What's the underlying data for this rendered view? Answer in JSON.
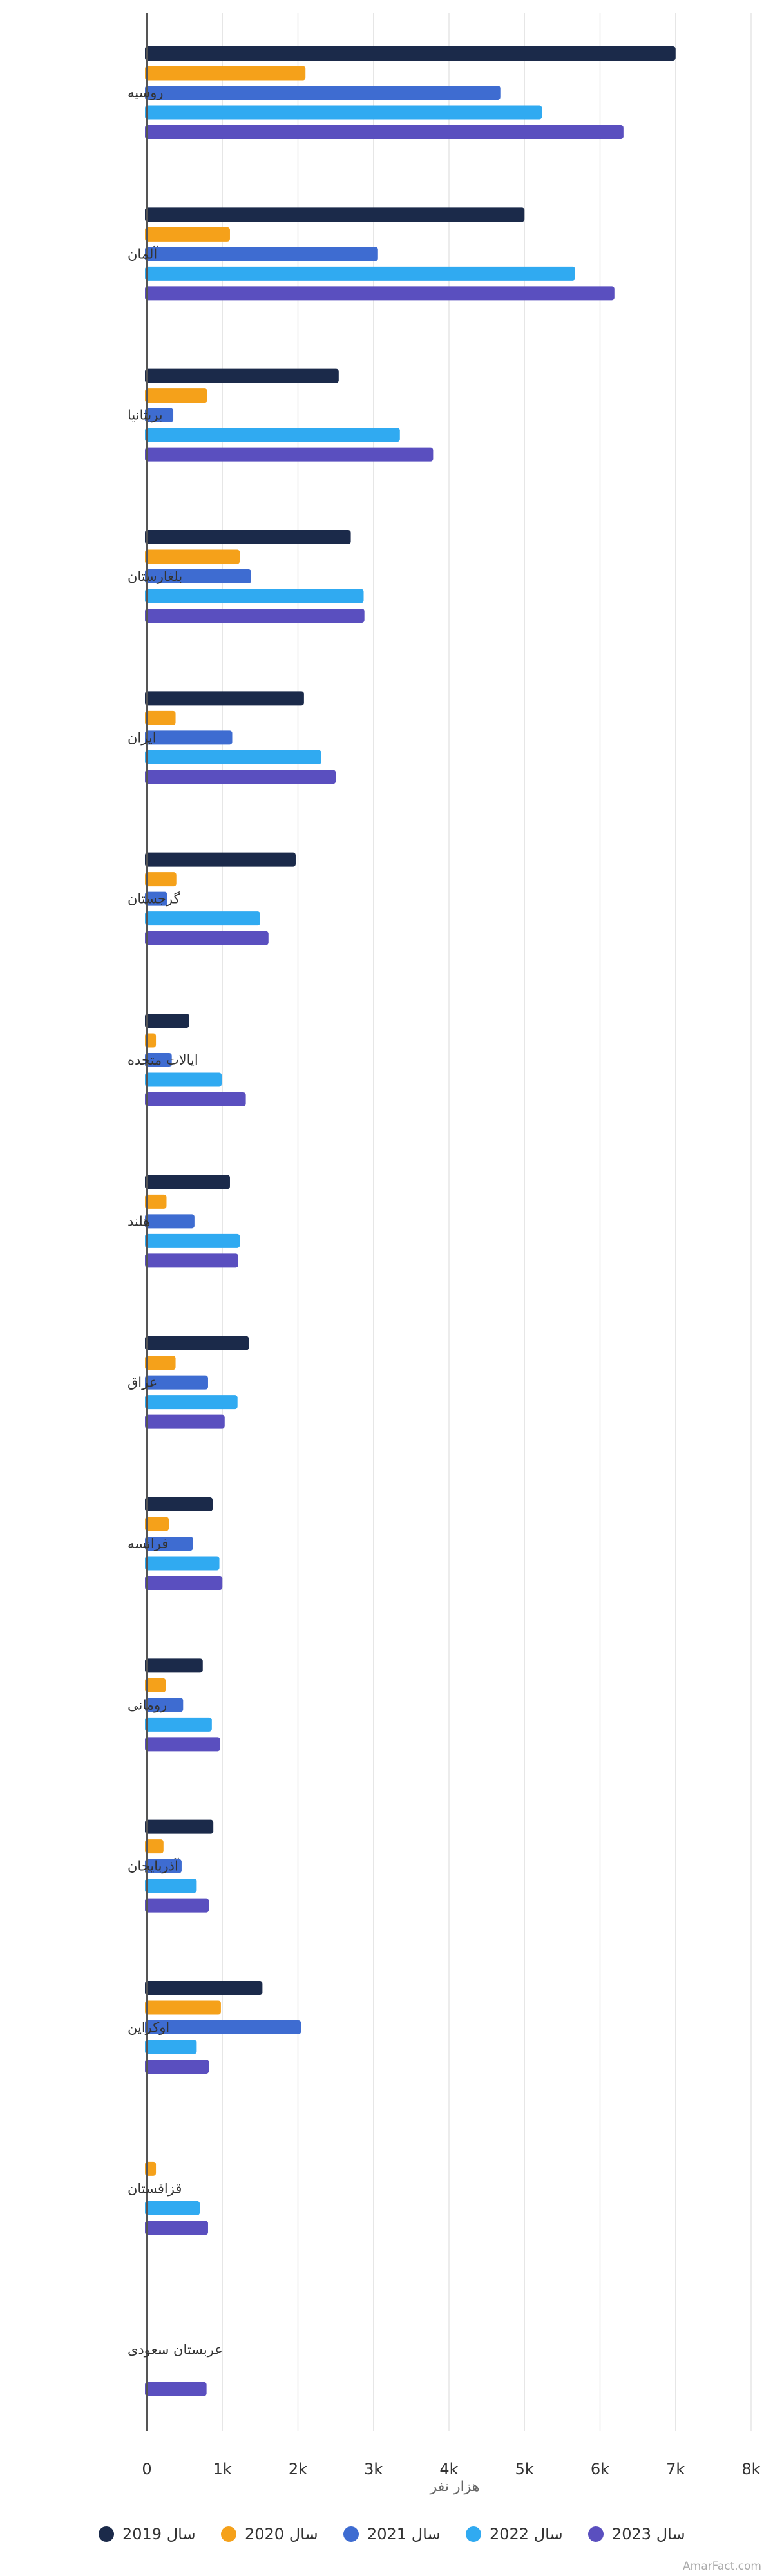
{
  "chart_data": {
    "type": "bar",
    "orientation": "horizontal",
    "title": "",
    "xlabel": "هزار نفر",
    "ylabel": "",
    "xlim": [
      0,
      8000
    ],
    "x_ticks": [
      {
        "value": 0,
        "label": "0"
      },
      {
        "value": 1000,
        "label": "1k"
      },
      {
        "value": 2000,
        "label": "2k"
      },
      {
        "value": 3000,
        "label": "3k"
      },
      {
        "value": 4000,
        "label": "4k"
      },
      {
        "value": 5000,
        "label": "5k"
      },
      {
        "value": 6000,
        "label": "6k"
      },
      {
        "value": 7000,
        "label": "7k"
      },
      {
        "value": 8000,
        "label": "8k"
      }
    ],
    "grid": true,
    "legend_position": "bottom",
    "categories": [
      "روسیه",
      "آلمان",
      "بریتانیا",
      "بلغارستان",
      "ایران",
      "گرجستان",
      "ایالات متحده",
      "هلند",
      "عراق",
      "فرانسه",
      "رومانی",
      "آذربایجان",
      "اوکراین",
      "قزاقستان",
      "عربستان سعودی"
    ],
    "series": [
      {
        "name": "سال 2019",
        "color": "#1b2a4a",
        "values": [
          7000,
          5000,
          2540,
          2700,
          2080,
          1970,
          560,
          1100,
          1350,
          870,
          740,
          880,
          1530,
          0,
          0
        ]
      },
      {
        "name": "سال 2020",
        "color": "#f5a11a",
        "values": [
          2100,
          1100,
          800,
          1230,
          380,
          390,
          120,
          260,
          380,
          290,
          250,
          220,
          980,
          120,
          0
        ]
      },
      {
        "name": "سال 2021",
        "color": "#3e6cd1",
        "values": [
          4680,
          3060,
          350,
          1380,
          1130,
          270,
          330,
          630,
          810,
          610,
          480,
          460,
          2040,
          0,
          0
        ]
      },
      {
        "name": "سال 2022",
        "color": "#30aaf1",
        "values": [
          5230,
          5670,
          3350,
          2870,
          2310,
          1500,
          990,
          1230,
          1200,
          960,
          860,
          660,
          660,
          700,
          0
        ]
      },
      {
        "name": "سال 2023",
        "color": "#5a4fbf",
        "values": [
          6310,
          6190,
          3790,
          2880,
          2500,
          1610,
          1310,
          1210,
          1030,
          1000,
          970,
          820,
          820,
          810,
          790
        ]
      }
    ]
  },
  "credit": "AmarFact.com"
}
